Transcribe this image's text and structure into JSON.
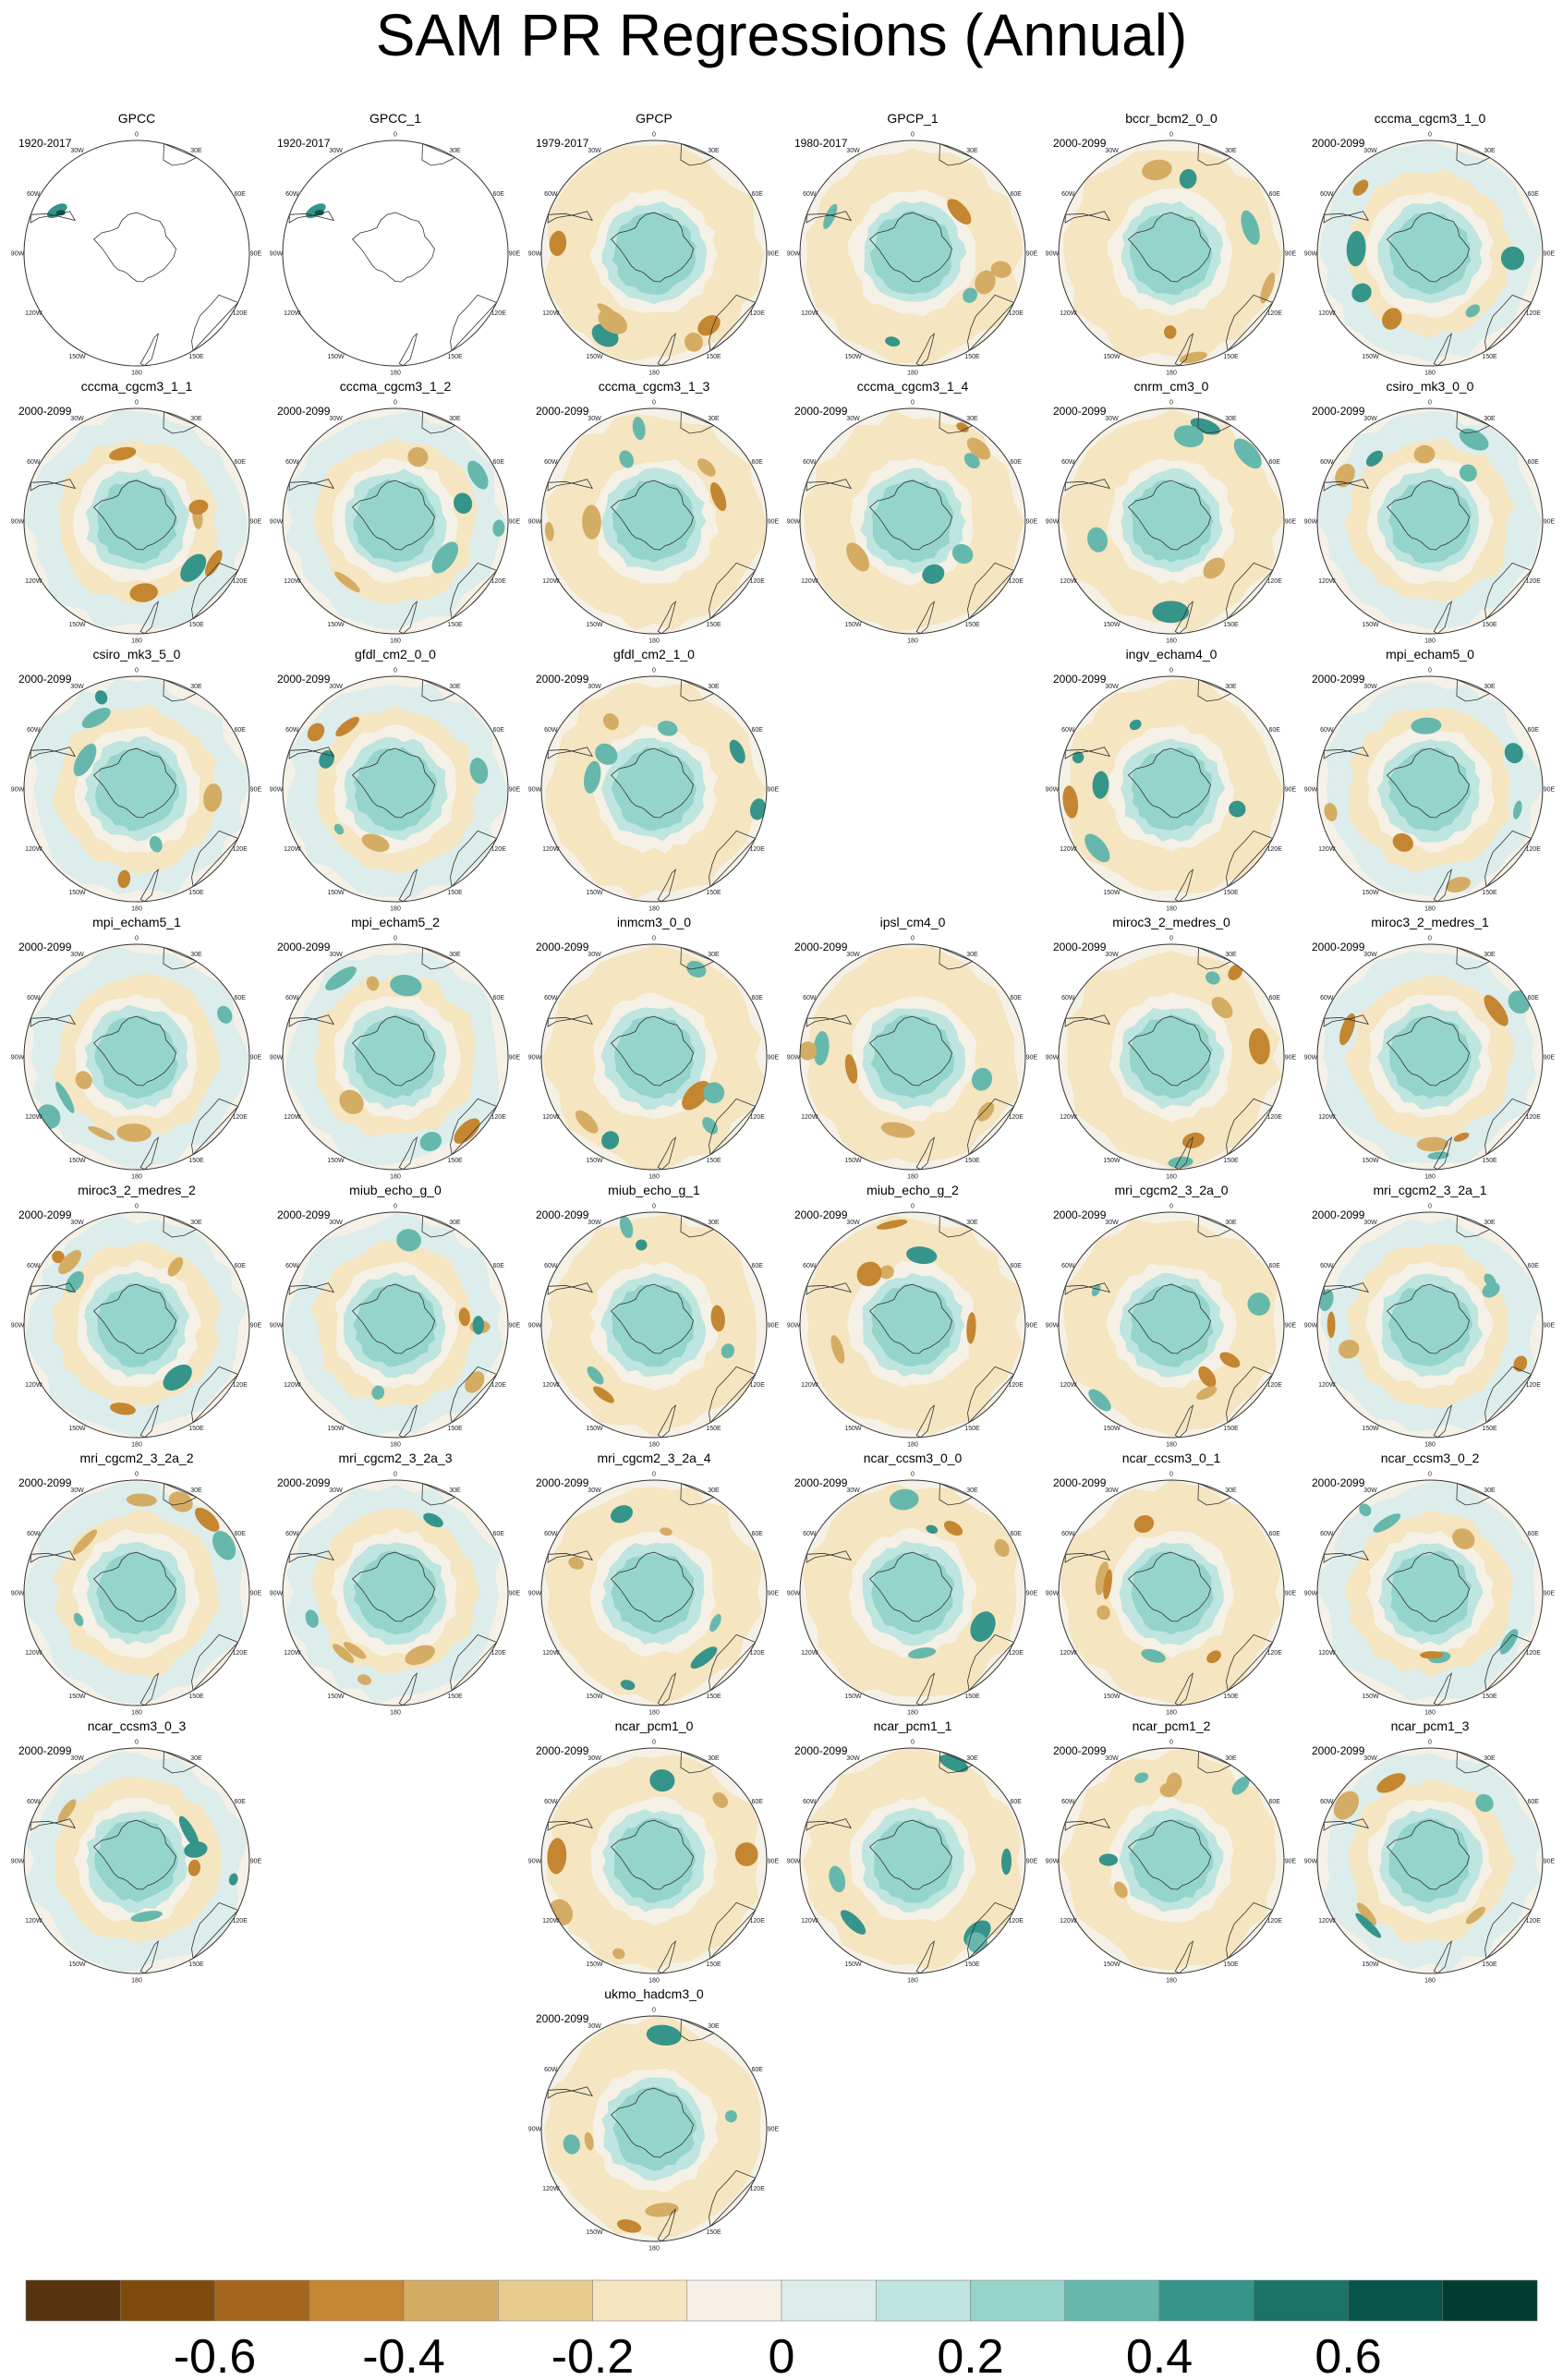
{
  "title": "SAM PR Regressions (Annual)",
  "panel_layout": {
    "columns": 6
  },
  "panels": [
    {
      "slot": 0,
      "name": "GPCC",
      "period": "1920-2017",
      "coverage": "land"
    },
    {
      "slot": 1,
      "name": "GPCC_1",
      "period": "1920-2017",
      "coverage": "land"
    },
    {
      "slot": 2,
      "name": "GPCP",
      "period": "1979-2017",
      "coverage": "full"
    },
    {
      "slot": 3,
      "name": "GPCP_1",
      "period": "1980-2017",
      "coverage": "full"
    },
    {
      "slot": 4,
      "name": "bccr_bcm2_0_0",
      "period": "2000-2099",
      "coverage": "full"
    },
    {
      "slot": 5,
      "name": "cccma_cgcm3_1_0",
      "period": "2000-2099",
      "coverage": "full"
    },
    {
      "slot": 6,
      "name": "cccma_cgcm3_1_1",
      "period": "2000-2099",
      "coverage": "full"
    },
    {
      "slot": 7,
      "name": "cccma_cgcm3_1_2",
      "period": "2000-2099",
      "coverage": "full"
    },
    {
      "slot": 8,
      "name": "cccma_cgcm3_1_3",
      "period": "2000-2099",
      "coverage": "full"
    },
    {
      "slot": 9,
      "name": "cccma_cgcm3_1_4",
      "period": "2000-2099",
      "coverage": "full"
    },
    {
      "slot": 10,
      "name": "cnrm_cm3_0",
      "period": "2000-2099",
      "coverage": "full"
    },
    {
      "slot": 11,
      "name": "csiro_mk3_0_0",
      "period": "2000-2099",
      "coverage": "full"
    },
    {
      "slot": 12,
      "name": "csiro_mk3_5_0",
      "period": "2000-2099",
      "coverage": "full"
    },
    {
      "slot": 13,
      "name": "gfdl_cm2_0_0",
      "period": "2000-2099",
      "coverage": "full"
    },
    {
      "slot": 14,
      "name": "gfdl_cm2_1_0",
      "period": "2000-2099",
      "coverage": "full"
    },
    {
      "slot": 16,
      "name": "ingv_echam4_0",
      "period": "2000-2099",
      "coverage": "full"
    },
    {
      "slot": 17,
      "name": "mpi_echam5_0",
      "period": "2000-2099",
      "coverage": "full"
    },
    {
      "slot": 18,
      "name": "mpi_echam5_1",
      "period": "2000-2099",
      "coverage": "full"
    },
    {
      "slot": 19,
      "name": "mpi_echam5_2",
      "period": "2000-2099",
      "coverage": "full"
    },
    {
      "slot": 20,
      "name": "inmcm3_0_0",
      "period": "2000-2099",
      "coverage": "full"
    },
    {
      "slot": 21,
      "name": "ipsl_cm4_0",
      "period": "2000-2099",
      "coverage": "full"
    },
    {
      "slot": 22,
      "name": "miroc3_2_medres_0",
      "period": "2000-2099",
      "coverage": "full"
    },
    {
      "slot": 23,
      "name": "miroc3_2_medres_1",
      "period": "2000-2099",
      "coverage": "full"
    },
    {
      "slot": 24,
      "name": "miroc3_2_medres_2",
      "period": "2000-2099",
      "coverage": "full"
    },
    {
      "slot": 25,
      "name": "miub_echo_g_0",
      "period": "2000-2099",
      "coverage": "full"
    },
    {
      "slot": 26,
      "name": "miub_echo_g_1",
      "period": "2000-2099",
      "coverage": "full"
    },
    {
      "slot": 27,
      "name": "miub_echo_g_2",
      "period": "2000-2099",
      "coverage": "full"
    },
    {
      "slot": 28,
      "name": "mri_cgcm2_3_2a_0",
      "period": "2000-2099",
      "coverage": "full"
    },
    {
      "slot": 29,
      "name": "mri_cgcm2_3_2a_1",
      "period": "2000-2099",
      "coverage": "full"
    },
    {
      "slot": 30,
      "name": "mri_cgcm2_3_2a_2",
      "period": "2000-2099",
      "coverage": "full"
    },
    {
      "slot": 31,
      "name": "mri_cgcm2_3_2a_3",
      "period": "2000-2099",
      "coverage": "full"
    },
    {
      "slot": 32,
      "name": "mri_cgcm2_3_2a_4",
      "period": "2000-2099",
      "coverage": "full"
    },
    {
      "slot": 33,
      "name": "ncar_ccsm3_0_0",
      "period": "2000-2099",
      "coverage": "full"
    },
    {
      "slot": 34,
      "name": "ncar_ccsm3_0_1",
      "period": "2000-2099",
      "coverage": "full"
    },
    {
      "slot": 35,
      "name": "ncar_ccsm3_0_2",
      "period": "2000-2099",
      "coverage": "full"
    },
    {
      "slot": 36,
      "name": "ncar_ccsm3_0_3",
      "period": "2000-2099",
      "coverage": "full"
    },
    {
      "slot": 38,
      "name": "ncar_pcm1_0",
      "period": "2000-2099",
      "coverage": "full"
    },
    {
      "slot": 39,
      "name": "ncar_pcm1_1",
      "period": "2000-2099",
      "coverage": "full"
    },
    {
      "slot": 40,
      "name": "ncar_pcm1_2",
      "period": "2000-2099",
      "coverage": "full"
    },
    {
      "slot": 41,
      "name": "ncar_pcm1_3",
      "period": "2000-2099",
      "coverage": "full"
    },
    {
      "slot": 44,
      "name": "ukmo_hadcm3_0",
      "period": "2000-2099",
      "coverage": "full"
    }
  ],
  "longitude_labels": [
    "0",
    "30E",
    "60E",
    "90E",
    "120E",
    "150E",
    "180",
    "150W",
    "120W",
    "90W",
    "60W",
    "30W"
  ],
  "colorbar": {
    "colors": [
      "#573410",
      "#7e4b0c",
      "#a4661d",
      "#c48630",
      "#d5ac64",
      "#e6cc8f",
      "#f5e5c0",
      "#f5f1e6",
      "#dcedeb",
      "#bee5df",
      "#94d4ca",
      "#66b8ad",
      "#35958a",
      "#197467",
      "#07554a",
      "#003d30"
    ],
    "tick_labels": [
      "-0.6",
      "-0.4",
      "-0.2",
      "0",
      "0.2",
      "0.4",
      "0.6"
    ],
    "tick_values": [
      -0.6,
      -0.4,
      -0.2,
      0,
      0.2,
      0.4,
      0.6
    ],
    "range": [
      -0.8,
      0.8
    ]
  }
}
